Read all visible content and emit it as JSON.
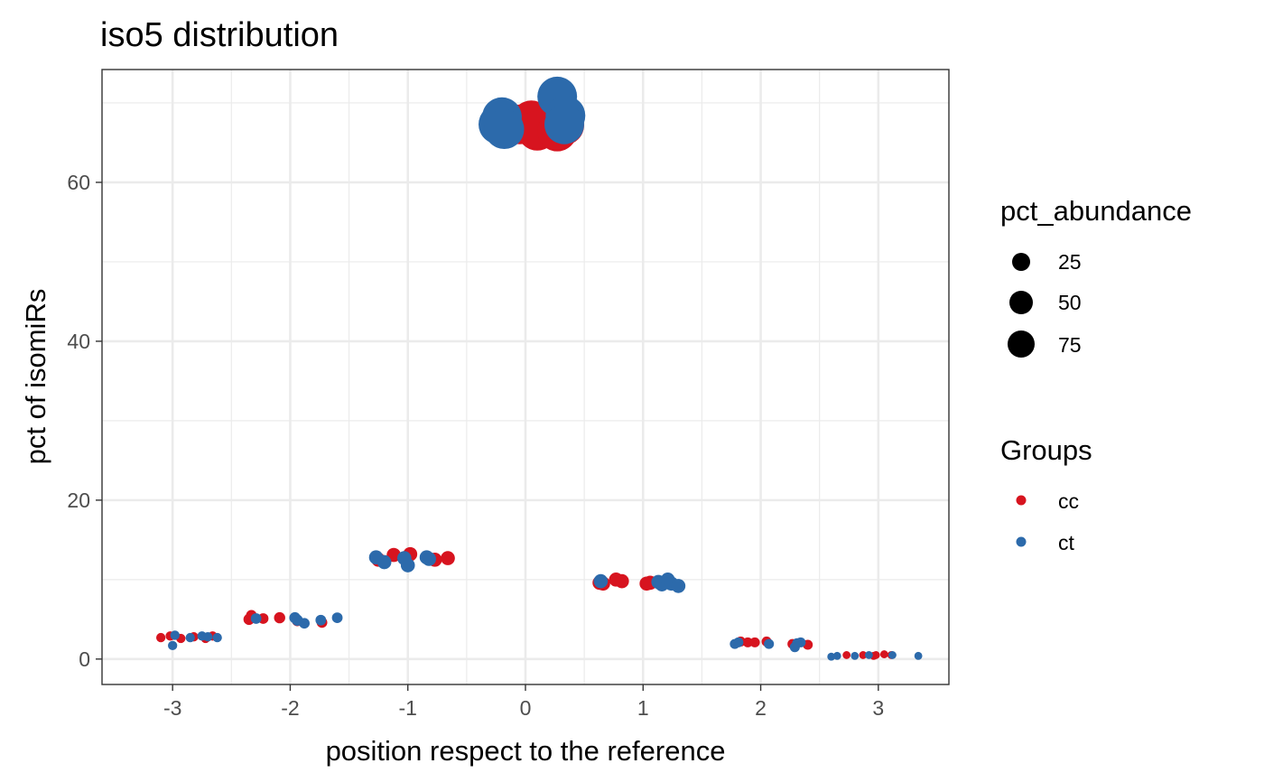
{
  "chart_data": {
    "type": "scatter",
    "title": "iso5 distribution",
    "xlabel": "position respect to the reference",
    "ylabel": "pct of isomiRs",
    "xlim": [
      -3.6,
      3.6
    ],
    "ylim": [
      -3.2,
      74.2
    ],
    "x_ticks": [
      -3,
      -2,
      -1,
      0,
      1,
      2,
      3
    ],
    "x_tick_labels": [
      "-3",
      "-2",
      "-1",
      "0",
      "1",
      "2",
      "3"
    ],
    "y_ticks": [
      0,
      20,
      40,
      60
    ],
    "y_tick_labels": [
      "0",
      "20",
      "40",
      "60"
    ],
    "grid": true,
    "legend_position": "right",
    "size_legend": {
      "title": "pct_abundance",
      "entries": [
        {
          "label": "25",
          "value": 25
        },
        {
          "label": "50",
          "value": 50
        },
        {
          "label": "75",
          "value": 75
        }
      ]
    },
    "color_legend": {
      "title": "Groups",
      "entries": [
        {
          "label": "cc",
          "color": "#d7141f"
        },
        {
          "label": "ct",
          "color": "#2c6aab"
        }
      ]
    },
    "series": [
      {
        "name": "cc",
        "color": "#d7141f",
        "points": [
          {
            "x": -3.1,
            "y": 2.7,
            "size": 0.6
          },
          {
            "x": -3.02,
            "y": 2.9,
            "size": 0.6
          },
          {
            "x": -2.93,
            "y": 2.6,
            "size": 0.6
          },
          {
            "x": -2.82,
            "y": 2.8,
            "size": 0.6
          },
          {
            "x": -2.72,
            "y": 2.6,
            "size": 0.6
          },
          {
            "x": -2.66,
            "y": 2.9,
            "size": 0.6
          },
          {
            "x": -2.35,
            "y": 5.0,
            "size": 1.2
          },
          {
            "x": -2.33,
            "y": 5.5,
            "size": 1.0
          },
          {
            "x": -2.23,
            "y": 5.1,
            "size": 1.0
          },
          {
            "x": -2.09,
            "y": 5.2,
            "size": 1.2
          },
          {
            "x": -1.94,
            "y": 4.8,
            "size": 1.0
          },
          {
            "x": -1.73,
            "y": 4.6,
            "size": 1.0
          },
          {
            "x": -1.25,
            "y": 12.5,
            "size": 2.5
          },
          {
            "x": -1.12,
            "y": 13.1,
            "size": 2.5
          },
          {
            "x": -1.02,
            "y": 12.6,
            "size": 2.5
          },
          {
            "x": -0.98,
            "y": 13.2,
            "size": 2.5
          },
          {
            "x": -0.77,
            "y": 12.5,
            "size": 2.5
          },
          {
            "x": -0.66,
            "y": 12.7,
            "size": 2.5
          },
          {
            "x": -0.2,
            "y": 67.8,
            "size": 67
          },
          {
            "x": -0.05,
            "y": 67.3,
            "size": 67
          },
          {
            "x": 0.05,
            "y": 67.8,
            "size": 67
          },
          {
            "x": 0.1,
            "y": 66.5,
            "size": 67
          },
          {
            "x": 0.27,
            "y": 66.4,
            "size": 67
          },
          {
            "x": 0.33,
            "y": 67.2,
            "size": 67
          },
          {
            "x": 0.63,
            "y": 9.6,
            "size": 2.5
          },
          {
            "x": 0.66,
            "y": 9.5,
            "size": 2.5
          },
          {
            "x": 0.77,
            "y": 10.0,
            "size": 2.5
          },
          {
            "x": 0.82,
            "y": 9.8,
            "size": 2.5
          },
          {
            "x": 1.03,
            "y": 9.5,
            "size": 2.5
          },
          {
            "x": 1.06,
            "y": 9.6,
            "size": 2.5
          },
          {
            "x": 1.83,
            "y": 2.2,
            "size": 0.8
          },
          {
            "x": 1.89,
            "y": 2.1,
            "size": 0.8
          },
          {
            "x": 1.95,
            "y": 2.1,
            "size": 0.8
          },
          {
            "x": 2.05,
            "y": 2.2,
            "size": 0.8
          },
          {
            "x": 2.27,
            "y": 1.9,
            "size": 0.8
          },
          {
            "x": 2.4,
            "y": 1.8,
            "size": 0.8
          },
          {
            "x": 2.73,
            "y": 0.5,
            "size": 0.3
          },
          {
            "x": 2.87,
            "y": 0.5,
            "size": 0.3
          },
          {
            "x": 2.96,
            "y": 0.4,
            "size": 0.3
          },
          {
            "x": 3.05,
            "y": 0.6,
            "size": 0.3
          },
          {
            "x": 3.11,
            "y": 0.5,
            "size": 0.3
          },
          {
            "x": 2.98,
            "y": 0.5,
            "size": 0.3
          }
        ]
      },
      {
        "name": "ct",
        "color": "#2c6aab",
        "points": [
          {
            "x": -3.0,
            "y": 1.7,
            "size": 0.6
          },
          {
            "x": -2.98,
            "y": 3.0,
            "size": 0.6
          },
          {
            "x": -2.85,
            "y": 2.7,
            "size": 0.6
          },
          {
            "x": -2.75,
            "y": 2.9,
            "size": 0.6
          },
          {
            "x": -2.7,
            "y": 2.8,
            "size": 0.6
          },
          {
            "x": -2.62,
            "y": 2.7,
            "size": 0.6
          },
          {
            "x": -2.29,
            "y": 5.1,
            "size": 1.0
          },
          {
            "x": -1.96,
            "y": 5.2,
            "size": 1.2
          },
          {
            "x": -1.94,
            "y": 4.9,
            "size": 1.2
          },
          {
            "x": -1.88,
            "y": 4.5,
            "size": 1.0
          },
          {
            "x": -1.74,
            "y": 4.9,
            "size": 1.0
          },
          {
            "x": -1.6,
            "y": 5.2,
            "size": 1.0
          },
          {
            "x": -1.27,
            "y": 12.8,
            "size": 2.5
          },
          {
            "x": -1.2,
            "y": 12.2,
            "size": 2.5
          },
          {
            "x": -1.03,
            "y": 12.7,
            "size": 2.5
          },
          {
            "x": -1.0,
            "y": 11.8,
            "size": 2.5
          },
          {
            "x": -0.84,
            "y": 12.8,
            "size": 2.5
          },
          {
            "x": -0.82,
            "y": 12.6,
            "size": 2.5
          },
          {
            "x": -0.23,
            "y": 67.3,
            "size": 67
          },
          {
            "x": -0.2,
            "y": 68.2,
            "size": 67
          },
          {
            "x": -0.18,
            "y": 66.7,
            "size": 67
          },
          {
            "x": 0.27,
            "y": 70.8,
            "size": 67
          },
          {
            "x": 0.34,
            "y": 68.4,
            "size": 67
          },
          {
            "x": 0.33,
            "y": 67.3,
            "size": 67
          },
          {
            "x": 0.64,
            "y": 9.8,
            "size": 2.5
          },
          {
            "x": 1.13,
            "y": 9.7,
            "size": 2.5
          },
          {
            "x": 1.16,
            "y": 9.4,
            "size": 2.5
          },
          {
            "x": 1.21,
            "y": 10.0,
            "size": 2.5
          },
          {
            "x": 1.24,
            "y": 9.5,
            "size": 2.5
          },
          {
            "x": 1.3,
            "y": 9.2,
            "size": 2.5
          },
          {
            "x": 1.78,
            "y": 1.9,
            "size": 0.8
          },
          {
            "x": 1.81,
            "y": 2.1,
            "size": 0.8
          },
          {
            "x": 2.07,
            "y": 1.9,
            "size": 0.8
          },
          {
            "x": 2.29,
            "y": 1.5,
            "size": 0.8
          },
          {
            "x": 2.31,
            "y": 2.0,
            "size": 0.8
          },
          {
            "x": 2.34,
            "y": 2.1,
            "size": 0.8
          },
          {
            "x": 2.6,
            "y": 0.3,
            "size": 0.3
          },
          {
            "x": 2.65,
            "y": 0.4,
            "size": 0.3
          },
          {
            "x": 2.8,
            "y": 0.4,
            "size": 0.3
          },
          {
            "x": 2.92,
            "y": 0.5,
            "size": 0.3
          },
          {
            "x": 3.12,
            "y": 0.5,
            "size": 0.3
          },
          {
            "x": 3.34,
            "y": 0.4,
            "size": 0.3
          }
        ]
      }
    ]
  }
}
